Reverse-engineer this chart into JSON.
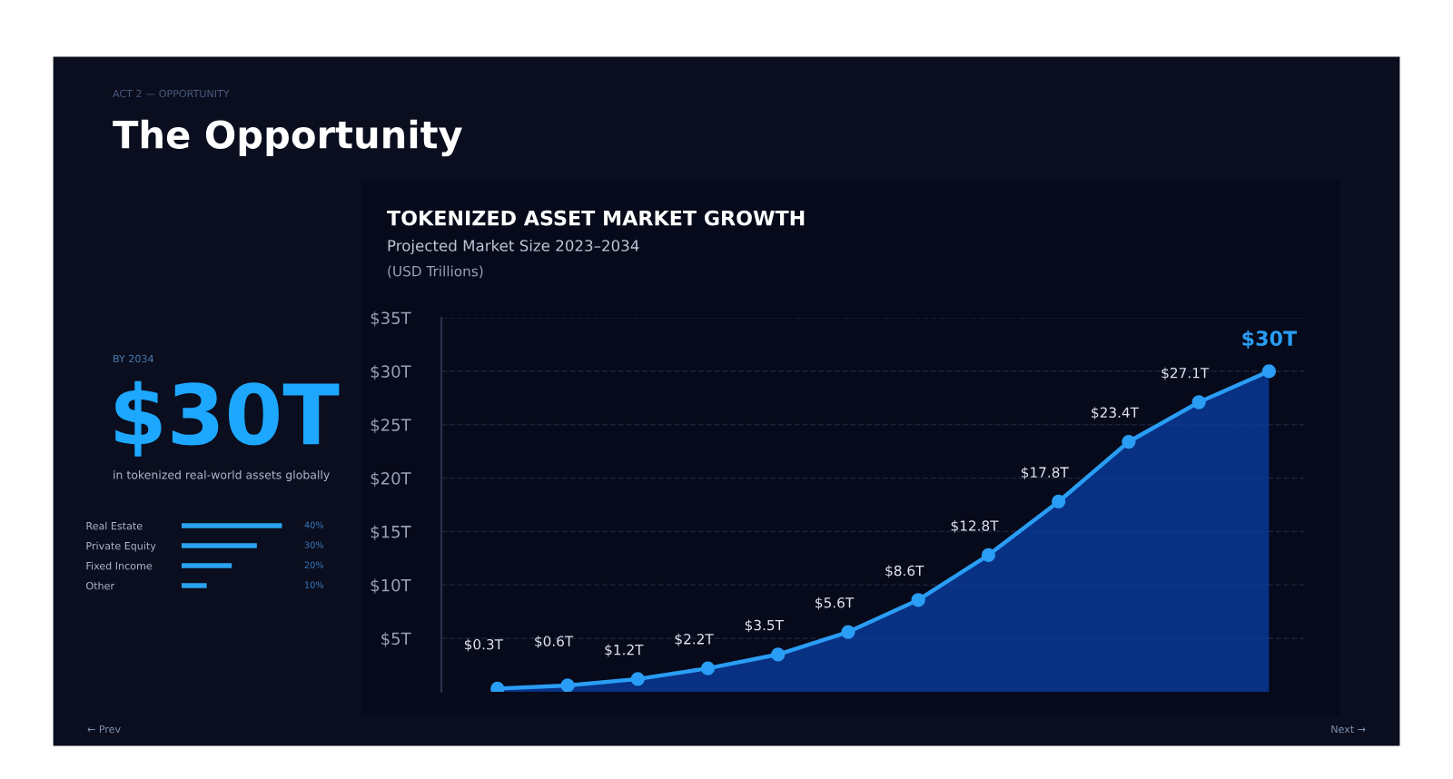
{
  "chart_data": [
    {
      "type": "other",
      "annotations": [
        "ACT 2 — OPPORTUNITY",
        "The Opportunity",
        "BY 2034",
        "$30T",
        "in tokenized real-world assets globally",
        "← Prev",
        "Next →"
      ]
    },
    {
      "type": "bar",
      "orientation": "horizontal",
      "categories": [
        "Real Estate",
        "Private Equity",
        "Fixed Income",
        "Other"
      ],
      "values": [
        40,
        30,
        20,
        10
      ],
      "value_labels": [
        "40%",
        "30%",
        "20%",
        "10%"
      ],
      "color": "#29a3f0",
      "tick_labels": "y",
      "grid": false,
      "legend": false
    },
    {
      "type": "area",
      "title": "TOKENIZED ASSET MARKET GROWTH",
      "subtitle": "Projected Market Size 2023–2034",
      "annotations": [
        "(USD Trillions)"
      ],
      "categories": [
        null,
        null,
        null,
        null,
        null,
        null,
        null,
        null,
        null,
        null,
        null,
        null
      ],
      "series": [
        {
          "color": "#2a9df4",
          "values": [
            0.3,
            0.6,
            1.2,
            2.2,
            3.5,
            5.6,
            8.6,
            12.8,
            17.8,
            23.4,
            27.1,
            30
          ]
        }
      ],
      "value_labels": [
        "$0.3T",
        "$0.6T",
        "$1.2T",
        "$2.2T",
        "$3.5T",
        "$5.6T",
        "$8.6T",
        "$12.8T",
        "$17.8T",
        "$23.4T",
        "$27.1T",
        "$30T"
      ],
      "ylim": [
        0,
        35
      ],
      "yticks": [
        {
          "value": 5,
          "label": "$5T"
        },
        {
          "value": 10,
          "label": "$10T"
        },
        {
          "value": 15,
          "label": "$15T"
        },
        {
          "value": 20,
          "label": "$20T"
        },
        {
          "value": 25,
          "label": "$25T"
        },
        {
          "value": 30,
          "label": "$30T"
        },
        {
          "value": 35,
          "label": "$35T"
        }
      ],
      "grid": "y",
      "marker": "circle",
      "line_style": "solid",
      "legend": false
    }
  ]
}
